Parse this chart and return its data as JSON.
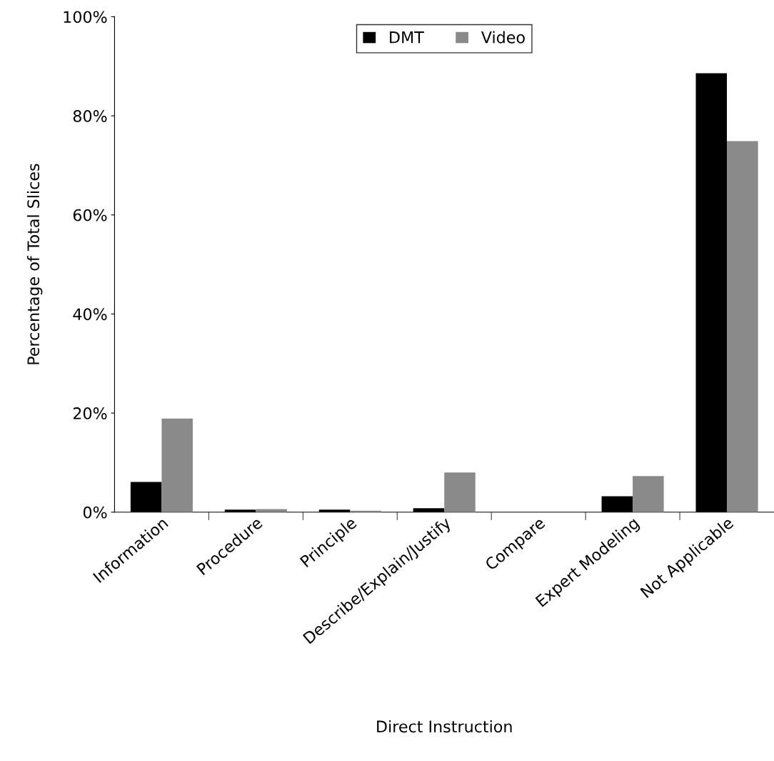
{
  "chart_data": {
    "type": "bar",
    "xlabel": "Direct Instruction",
    "ylabel": "Percentage of Total Slices",
    "categories": [
      "Information",
      "Procedure",
      "Principle",
      "Describe/Explain/Justify",
      "Compare",
      "Expert Modeling",
      "Not Applicable"
    ],
    "series": [
      {
        "name": "DMT",
        "color": "#000000",
        "values": [
          6.1,
          0.5,
          0.5,
          0.8,
          0,
          3.2,
          88.6
        ]
      },
      {
        "name": "Video",
        "color": "#8a8a8a",
        "values": [
          18.9,
          0.6,
          0.3,
          8.0,
          0,
          7.3,
          74.9
        ]
      }
    ],
    "ylim": [
      0,
      100
    ],
    "yticks": [
      {
        "value": 0,
        "label": "0%"
      },
      {
        "value": 20,
        "label": "20%"
      },
      {
        "value": 40,
        "label": "40%"
      },
      {
        "value": 60,
        "label": "60%"
      },
      {
        "value": 80,
        "label": "80%"
      },
      {
        "value": 100,
        "label": "100%"
      }
    ],
    "grid": false,
    "legend": "top"
  }
}
